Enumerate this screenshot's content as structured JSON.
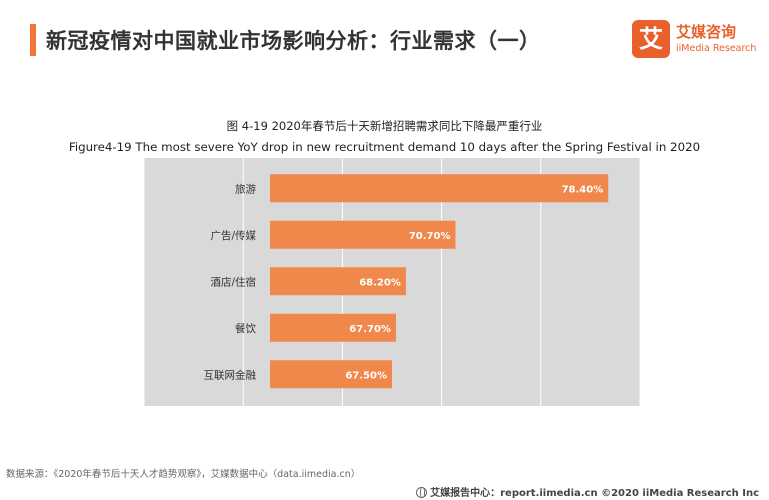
{
  "header": {
    "title": "新冠疫情对中国就业市场影响分析：行业需求（一）",
    "accent_color": "#F0763A"
  },
  "logo": {
    "mark": "艾",
    "name_cn": "艾媒咨询",
    "name_en": "iiMedia Research",
    "color": "#E8612C"
  },
  "chart_data": {
    "type": "bar",
    "orientation": "horizontal",
    "title": "图 4-19 2020年春节后十天新增招聘需求同比下降最严重行业",
    "subtitle": "Figure4-19 The most severe YoY drop in new recruitment demand  10 days after the Spring Festival in 2020",
    "categories": [
      "旅游",
      "广告/传媒",
      "酒店/住宿",
      "餐饮",
      "互联网金融"
    ],
    "values": [
      78.4,
      70.7,
      68.2,
      67.7,
      67.5
    ],
    "value_labels": [
      "78.40%",
      "70.70%",
      "68.20%",
      "67.70%",
      "67.50%"
    ],
    "xlim": [
      55,
      80
    ],
    "grid": true,
    "bar_color": "#F0884B",
    "plot_background": "#D9D9D9",
    "label_color": "#FFFFFF"
  },
  "source": "数据来源：《2020年春节后十天人才趋势观察》，艾媒数据中心（data.iimedia.cn）",
  "footer": {
    "icon": "globe-icon",
    "text": "艾媒报告中心：report.iimedia.cn ©2020  iiMedia Research  Inc"
  }
}
